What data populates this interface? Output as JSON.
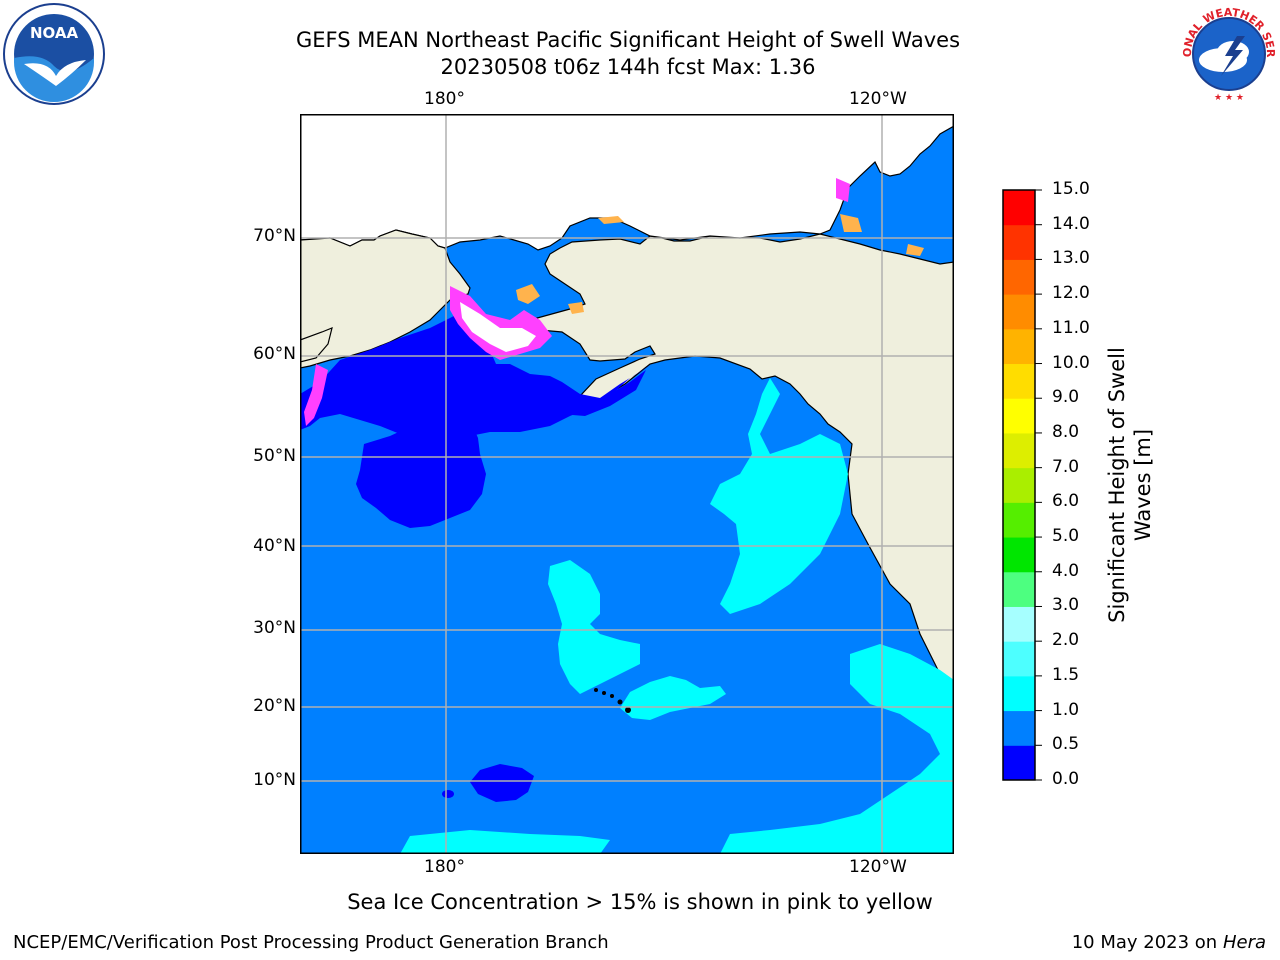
{
  "title": {
    "line1": "GEFS MEAN Northeast Pacific Significant Height of Swell Waves",
    "line2": "20230508 t06z 144h fcst   Max: 1.36"
  },
  "logos": {
    "left": "NOAA",
    "right": "NATIONAL WEATHER SERVICE"
  },
  "map": {
    "lon_labels_top": [
      "180°",
      "120°W"
    ],
    "lon_labels_bottom": [
      "180°",
      "120°W"
    ],
    "lat_labels": [
      "70°N",
      "60°N",
      "50°N",
      "40°N",
      "30°N",
      "20°N",
      "10°N"
    ],
    "colors": {
      "land": "#efefdd",
      "ocean_0_05": "#0000ff",
      "ocean_05_1": "#0080ff",
      "ocean_1_15": "#00ffff",
      "sea_ice_pink": "#ff40ff",
      "sea_ice_orange": "#ffb34d",
      "grid": "#b0b0b0"
    }
  },
  "colorbar": {
    "ticks": [
      "15.0",
      "14.0",
      "13.0",
      "12.0",
      "11.0",
      "10.0",
      "9.0",
      "8.0",
      "7.0",
      "6.0",
      "5.0",
      "4.0",
      "3.0",
      "2.0",
      "1.5",
      "1.0",
      "0.5",
      "0.0"
    ],
    "label": "Significant Height of Swell Waves [m]",
    "colors": [
      "#0000ff",
      "#0080ff",
      "#00ffff",
      "#4dffff",
      "#a6ffff",
      "#4dff80",
      "#00e600",
      "#55ee00",
      "#aaee00",
      "#ddee00",
      "#ffff00",
      "#ffdd00",
      "#ffb300",
      "#ff8c00",
      "#ff6600",
      "#ff3300",
      "#ff0000"
    ]
  },
  "ice_note": "Sea Ice Concentration > 15% is shown in pink to yellow",
  "footer": {
    "left": "NCEP/EMC/Verification Post Processing Product Generation Branch",
    "date": "10 May 2023 on",
    "machine": "Hera"
  }
}
